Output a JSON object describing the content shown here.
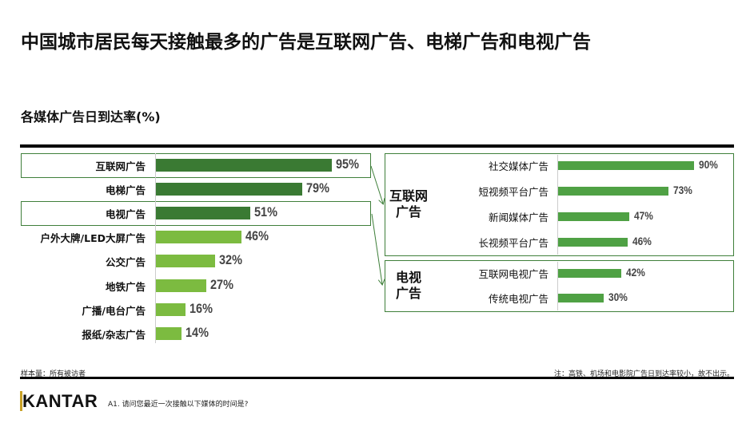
{
  "title": "中国城市居民每天接触最多的广告是互联网广告、电梯广告和电视广告",
  "subtitle": "各媒体广告日到达率(%)",
  "colors": {
    "dark": "#3a7a33",
    "light": "#7cbb40",
    "sub": "#4fa144",
    "box": "#3f7f3a"
  },
  "chart_data": [
    {
      "type": "bar",
      "orientation": "horizontal",
      "unit": "%",
      "categories": [
        "互联网广告",
        "电梯广告",
        "电视广告",
        "户外大牌/LED大屏广告",
        "公交广告",
        "地铁广告",
        "广播/电台广告",
        "报纸/杂志广告"
      ],
      "values": [
        95,
        79,
        51,
        46,
        32,
        27,
        16,
        14
      ],
      "labels": [
        "95%",
        "79%",
        "51%",
        "46%",
        "32%",
        "27%",
        "16%",
        "14%"
      ],
      "highlighted": [
        "互联网广告",
        "电视广告"
      ]
    },
    {
      "type": "bar",
      "orientation": "horizontal",
      "unit": "%",
      "group": "互联网\n广告",
      "group_lines": [
        "互联网",
        "广告"
      ],
      "categories": [
        "社交媒体广告",
        "短视频平台广告",
        "新闻媒体广告",
        "长视频平台广告"
      ],
      "values": [
        90,
        73,
        47,
        46
      ],
      "labels": [
        "90%",
        "73%",
        "47%",
        "46%"
      ]
    },
    {
      "type": "bar",
      "orientation": "horizontal",
      "unit": "%",
      "group_lines": [
        "电视",
        "广告"
      ],
      "categories": [
        "互联网电视广告",
        "传统电视广告"
      ],
      "values": [
        42,
        30
      ],
      "labels": [
        "42%",
        "30%"
      ]
    }
  ],
  "footer": {
    "sample": "样本量：所有被访者",
    "note": "注：高铁、机场和电影院广告日到达率较小，故不出示。",
    "question": "A1. 请问您最近一次接触以下媒体的时间是?",
    "logo": "KANTAR"
  }
}
